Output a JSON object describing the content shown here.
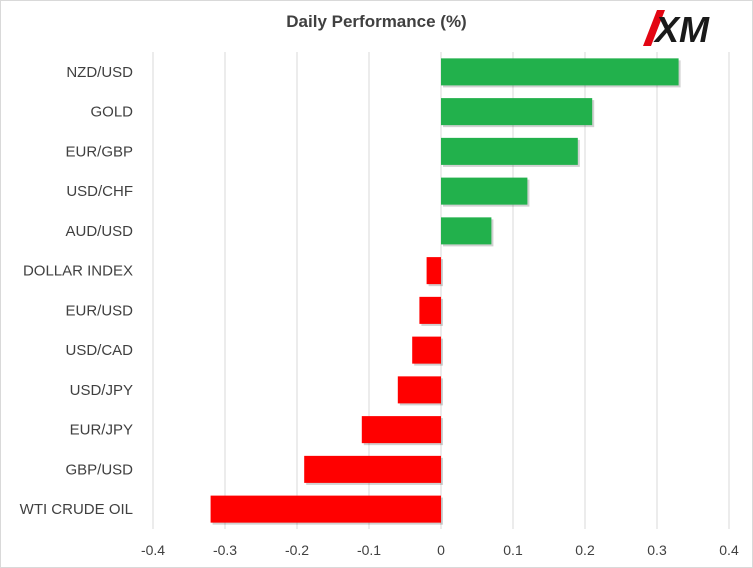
{
  "chart_data": {
    "type": "bar",
    "orientation": "horizontal",
    "title": "Daily Performance  (%)",
    "categories": [
      "NZD/USD",
      "GOLD",
      "EUR/GBP",
      "USD/CHF",
      "AUD/USD",
      "DOLLAR INDEX",
      "EUR/USD",
      "USD/CAD",
      "USD/JPY",
      "EUR/JPY",
      "GBP/USD",
      "WTI CRUDE OIL"
    ],
    "values": [
      0.33,
      0.21,
      0.19,
      0.12,
      0.07,
      -0.02,
      -0.03,
      -0.04,
      -0.06,
      -0.11,
      -0.19,
      -0.32
    ],
    "xlim": [
      -0.4,
      0.4
    ],
    "xticks": [
      "-0.4",
      "-0.3",
      "-0.2",
      "-0.1",
      "0",
      "0.1",
      "0.2",
      "0.3",
      "0.4"
    ],
    "grid": true,
    "colors": {
      "positive": "#22b14c",
      "negative": "#ff0000",
      "grid": "#d9d9d9"
    }
  },
  "brand": {
    "logo_text": "XM",
    "logo_colors": {
      "text": "#1a1a1a",
      "accent": "#e30613"
    }
  }
}
